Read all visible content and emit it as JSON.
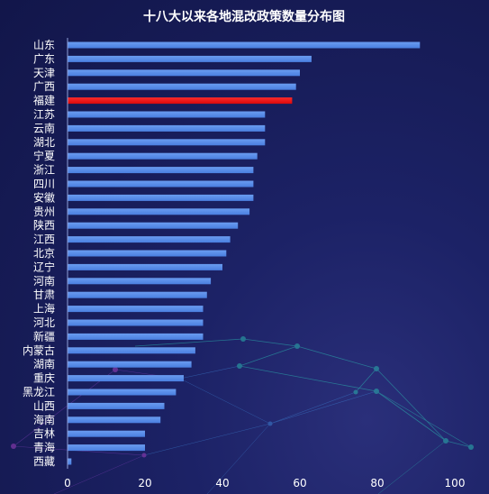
{
  "chart_data": {
    "type": "bar",
    "orientation": "horizontal",
    "title": "十八大以来各地混改政策数量分布图",
    "categories": [
      "山东",
      "广东",
      "天津",
      "广西",
      "福建",
      "江苏",
      "云南",
      "湖北",
      "宁夏",
      "浙江",
      "四川",
      "安徽",
      "贵州",
      "陕西",
      "江西",
      "北京",
      "辽宁",
      "河南",
      "甘肃",
      "上海",
      "河北",
      "新疆",
      "内蒙古",
      "湖南",
      "重庆",
      "黑龙江",
      "山西",
      "海南",
      "吉林",
      "青海",
      "西藏"
    ],
    "values": [
      91,
      63,
      60,
      59,
      58,
      51,
      51,
      51,
      49,
      48,
      48,
      48,
      47,
      44,
      42,
      41,
      40,
      37,
      36,
      35,
      35,
      35,
      33,
      32,
      30,
      28,
      25,
      24,
      20,
      20,
      1
    ],
    "highlight_category": "福建",
    "xlim": [
      0,
      100
    ],
    "xticks": [
      0,
      20,
      40,
      60,
      80,
      100
    ],
    "xlabel": "",
    "ylabel": "",
    "grid": false,
    "colors": {
      "bar": "#4a7fe0",
      "bar_highlight": "#d8090c",
      "text": "#ffffff",
      "axis": "#8fa0d8"
    }
  }
}
